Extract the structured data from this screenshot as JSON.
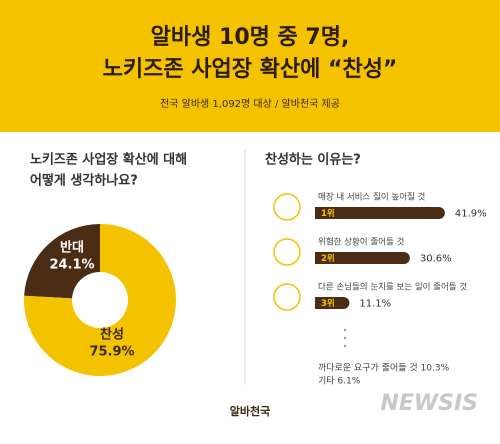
{
  "header": {
    "title_lines": [
      "알바생 10명 중 7명,",
      "노키즈존 사업장 확산에 “찬성”"
    ],
    "subtitle": "전국 알바생 1,092명 대상 / 알바천국 제공"
  },
  "chart_data": [
    {
      "type": "pie",
      "title_lines": [
        "노키즈존 사업장 확산에 대해",
        "어떻게 생각하나요?"
      ],
      "categories": [
        "반대",
        "찬성"
      ],
      "values": [
        24.1,
        75.9
      ],
      "value_labels": [
        "24.1%",
        "75.9%"
      ],
      "colors": [
        "#4b2c14",
        "#f5c200"
      ]
    },
    {
      "type": "bar",
      "title": "찬성하는 이유는?",
      "categories": [
        "매장 내 서비스 질이 높아질 것",
        "위험한 상황이 줄어들 것",
        "다른 손님들의 눈치를 보는 일이 줄어들 것"
      ],
      "ranks": [
        "1위",
        "2위",
        "3위"
      ],
      "values": [
        41.9,
        30.6,
        11.1
      ],
      "value_labels": [
        "41.9%",
        "30.6%",
        "11.1%"
      ],
      "color": "#4b2c14",
      "notes": [
        "까다로운 요구가 줄어들 것 10.3%",
        "기타 6.1%"
      ]
    }
  ],
  "footer": {
    "logo": "알바천국",
    "watermark": "NEWSIS"
  }
}
